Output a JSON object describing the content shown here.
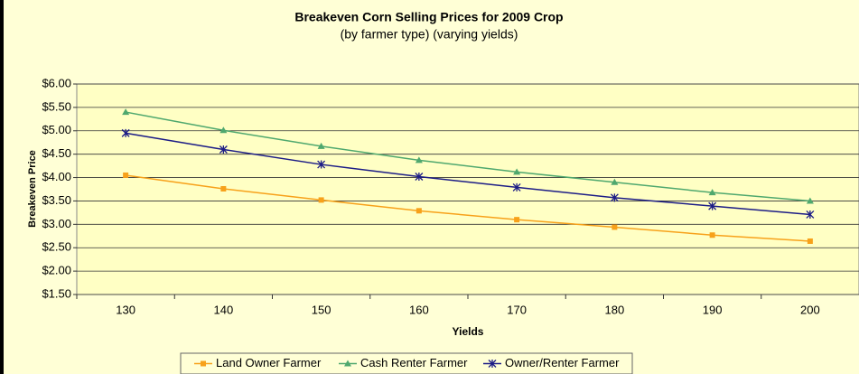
{
  "chart_data": {
    "type": "line",
    "title": "Breakeven Corn Selling Prices for 2009 Crop",
    "subtitle": "(by farmer type) (varying yields)",
    "x_label": "Yields",
    "y_label": "Breakeven Price",
    "categories": [
      "130",
      "140",
      "150",
      "160",
      "170",
      "180",
      "190",
      "200"
    ],
    "series": [
      {
        "name": "Land Owner Farmer",
        "color": "#F7A11A",
        "marker": "square",
        "values": [
          4.05,
          3.76,
          3.52,
          3.29,
          3.1,
          2.94,
          2.77,
          2.64
        ]
      },
      {
        "name": "Cash Renter Farmer",
        "color": "#4FA86E",
        "marker": "triangle",
        "values": [
          5.4,
          5.01,
          4.67,
          4.37,
          4.12,
          3.9,
          3.68,
          3.5
        ]
      },
      {
        "name": "Owner/Renter Farmer",
        "color": "#1C1C86",
        "marker": "asterisk",
        "values": [
          4.95,
          4.6,
          4.28,
          4.02,
          3.79,
          3.57,
          3.39,
          3.21
        ]
      }
    ],
    "ylim": [
      1.5,
      6
    ],
    "yticks": [
      {
        "value": 1.5,
        "label": "$1.50"
      },
      {
        "value": 2,
        "label": "$2.00"
      },
      {
        "value": 2.5,
        "label": "$2.50"
      },
      {
        "value": 3,
        "label": "$3.00"
      },
      {
        "value": 3.5,
        "label": "$3.50"
      },
      {
        "value": 4,
        "label": "$4.00"
      },
      {
        "value": 4.5,
        "label": "$4.50"
      },
      {
        "value": 5,
        "label": "$5.00"
      },
      {
        "value": 5.5,
        "label": "$5.50"
      },
      {
        "value": 6,
        "label": "$6.00"
      }
    ],
    "grid": true,
    "legend": "bottom"
  }
}
